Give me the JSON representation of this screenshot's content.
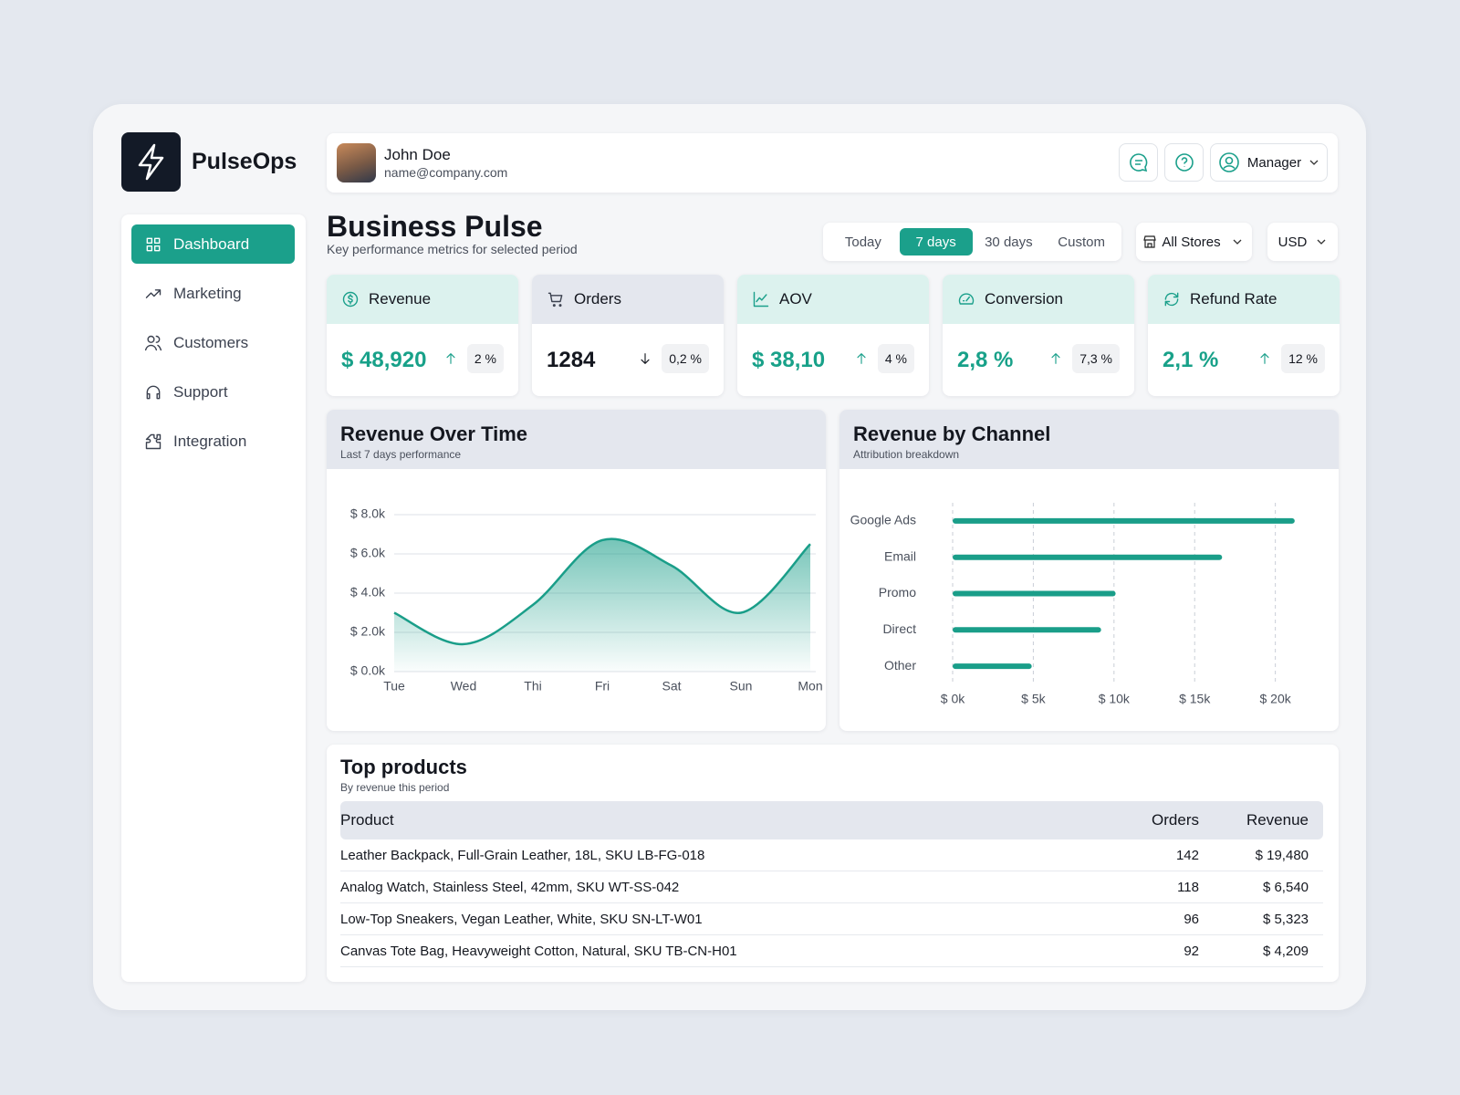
{
  "brand": {
    "name": "PulseOps"
  },
  "user": {
    "name": "John Doe",
    "email": "name@company.com",
    "role": "Manager"
  },
  "nav": [
    {
      "label": "Dashboard",
      "active": true
    },
    {
      "label": "Marketing",
      "active": false
    },
    {
      "label": "Customers",
      "active": false
    },
    {
      "label": "Support",
      "active": false
    },
    {
      "label": "Integration",
      "active": false
    }
  ],
  "header": {
    "title": "Business Pulse",
    "subtitle": "Key performance metrics for selected period"
  },
  "period_tabs": {
    "options": [
      "Today",
      "7 days",
      "30 days",
      "Custom"
    ],
    "selected": 1
  },
  "filters": {
    "store": "All Stores",
    "currency": "USD"
  },
  "kpis": [
    {
      "label": "Revenue",
      "value": "$ 48,920",
      "change": "2 %",
      "trend": "up",
      "accent": "#18a189",
      "header_color": "#dcf2ee"
    },
    {
      "label": "Orders",
      "value": "1284",
      "change": "0,2 %",
      "trend": "down",
      "accent": "#14171f",
      "header_color": "#e4e7ee"
    },
    {
      "label": "AOV",
      "value": "$ 38,10",
      "change": "4 %",
      "trend": "up",
      "accent": "#18a189",
      "header_color": "#dcf2ee"
    },
    {
      "label": "Conversion",
      "value": "2,8 %",
      "change": "7,3 %",
      "trend": "up",
      "accent": "#18a189",
      "header_color": "#dcf2ee"
    },
    {
      "label": "Refund Rate",
      "value": "2,1 %",
      "change": "12 %",
      "trend": "up",
      "accent": "#18a189",
      "header_color": "#dcf2ee"
    }
  ],
  "chart_data": [
    {
      "type": "area",
      "title": "Revenue Over Time",
      "subtitle": "Last 7 days performance",
      "categories": [
        "Tue",
        "Wed",
        "Thi",
        "Fri",
        "Sat",
        "Sun",
        "Mon"
      ],
      "values": [
        3000,
        1400,
        3400,
        6700,
        5400,
        3000,
        6500
      ],
      "color": "#1a9e89",
      "ylim": [
        0,
        8000
      ],
      "yticks": [
        {
          "value": 0,
          "label": "$ 0.0k"
        },
        {
          "value": 2000,
          "label": "$ 2.0k"
        },
        {
          "value": 4000,
          "label": "$ 4.0k"
        },
        {
          "value": 6000,
          "label": "$ 6.0k"
        },
        {
          "value": 8000,
          "label": "$ 8.0k"
        }
      ],
      "grid": true
    },
    {
      "type": "bar",
      "orientation": "horizontal",
      "title": "Revenue by Channel",
      "subtitle": "Attribution breakdown",
      "categories": [
        "Google Ads",
        "Email",
        "Promo",
        "Direct",
        "Other"
      ],
      "values": [
        21200,
        16700,
        10100,
        9200,
        4900
      ],
      "color": "#1a9e89",
      "xlim": [
        0,
        22000
      ],
      "xticks": [
        {
          "value": 0,
          "label": "$ 0k"
        },
        {
          "value": 5000,
          "label": "$ 5k"
        },
        {
          "value": 10000,
          "label": "$ 10k"
        },
        {
          "value": 15000,
          "label": "$ 15k"
        },
        {
          "value": 20000,
          "label": "$ 20k"
        }
      ],
      "grid": true
    }
  ],
  "products": {
    "title": "Top products",
    "subtitle": "By revenue this period",
    "columns": [
      "Product",
      "Orders",
      "Revenue"
    ],
    "rows": [
      [
        "Leather Backpack, Full-Grain Leather, 18L, SKU LB-FG-018",
        "142",
        "$ 19,480"
      ],
      [
        "Analog Watch, Stainless Steel, 42mm, SKU WT-SS-042",
        "118",
        "$ 6,540"
      ],
      [
        "Low-Top Sneakers, Vegan Leather, White, SKU SN-LT-W01",
        "96",
        "$ 5,323"
      ],
      [
        "Canvas Tote Bag, Heavyweight Cotton, Natural, SKU TB-CN-H01",
        "92",
        "$ 4,209"
      ]
    ]
  }
}
